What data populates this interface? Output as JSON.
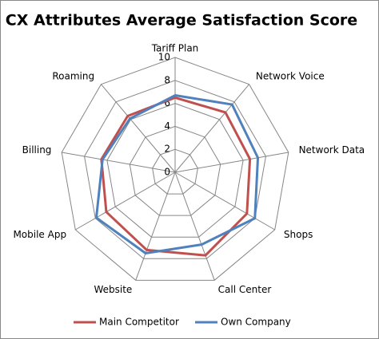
{
  "chart_data": {
    "type": "radar",
    "title": "CX Attributes Average Satisfaction Score",
    "categories": [
      "Tariff Plan",
      "Network Voice",
      "Network Data",
      "Shops",
      "Call Center",
      "Website",
      "Mobile App",
      "Billing",
      "Roaming"
    ],
    "series": [
      {
        "name": "Main Competitor",
        "color": "#c0504d",
        "values": [
          6.5,
          6.8,
          6.6,
          7.2,
          7.7,
          7.2,
          6.9,
          6.5,
          6.4
        ]
      },
      {
        "name": "Own Company",
        "color": "#4f81bd",
        "values": [
          6.7,
          7.7,
          7.3,
          8.0,
          6.7,
          7.5,
          7.9,
          6.4,
          6.1
        ]
      }
    ],
    "ylim": [
      0,
      10
    ],
    "yticks": [
      0,
      2,
      4,
      6,
      8,
      10
    ],
    "grid": true,
    "legend": "bottom"
  }
}
